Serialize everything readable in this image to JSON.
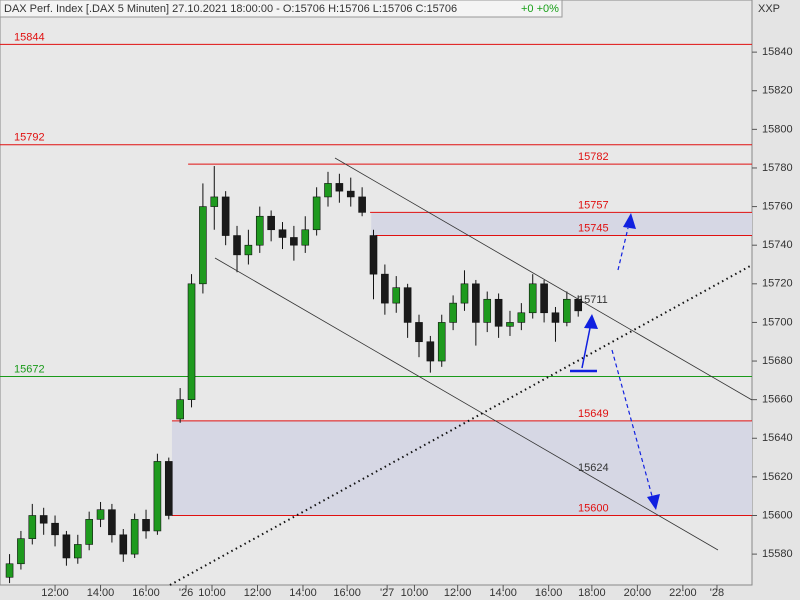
{
  "chart_data": {
    "type": "candlestick",
    "title": "DAX Perf. Index [.DAX  5 Minuten] 27.10.2021 18:00:00 - O:15706 H:15706 L:15706 C:15706",
    "change": "+0 +0%",
    "y_axis_label": "XXP",
    "up_color": "#1e9a1e",
    "down_color": "#1a1a1a",
    "ylim": [
      15564,
      15867
    ],
    "yticks": [
      15580,
      15600,
      15620,
      15640,
      15660,
      15680,
      15700,
      15720,
      15740,
      15760,
      15780,
      15800,
      15820,
      15840
    ],
    "xlim": [
      -2.42,
      30.64
    ],
    "xticks": [
      {
        "value": 0,
        "label": "12:00"
      },
      {
        "value": 2,
        "label": "14:00"
      },
      {
        "value": 4,
        "label": "16:00"
      },
      {
        "value": 5.76,
        "label": "'26"
      },
      {
        "value": 6.9,
        "label": "10:00"
      },
      {
        "value": 8.9,
        "label": "12:00"
      },
      {
        "value": 10.9,
        "label": "14:00"
      },
      {
        "value": 12.84,
        "label": "16:00"
      },
      {
        "value": 14.6,
        "label": "'27"
      },
      {
        "value": 15.8,
        "label": "10:00"
      },
      {
        "value": 17.7,
        "label": "12:00"
      },
      {
        "value": 19.7,
        "label": "14:00"
      },
      {
        "value": 21.7,
        "label": "16:00"
      },
      {
        "value": 23.6,
        "label": "18:00"
      },
      {
        "value": 25.6,
        "label": "20:00"
      },
      {
        "value": 27.6,
        "label": "22:00"
      },
      {
        "value": 29.1,
        "label": "'28"
      }
    ],
    "x": [
      -2.0,
      -1.5,
      -1.0,
      -0.5,
      0,
      0.5,
      1.0,
      1.5,
      2.0,
      2.5,
      3.0,
      3.5,
      4.0,
      4.5,
      5.0,
      5.5,
      6.0,
      6.5,
      7.0,
      7.5,
      8.0,
      8.5,
      9.0,
      9.5,
      10.0,
      10.5,
      11.0,
      11.5,
      12.0,
      12.5,
      13.0,
      13.5,
      14.0,
      14.5,
      15.0,
      15.5,
      16.0,
      16.5,
      17.0,
      17.5,
      18.0,
      18.5,
      19.0,
      19.5,
      20.0,
      20.5,
      21.0,
      21.5,
      22.0,
      22.5,
      23.0
    ],
    "open": [
      15568,
      15575,
      15588,
      15600,
      15596,
      15590,
      15578,
      15585,
      15598,
      15603,
      15590,
      15580,
      15598,
      15592,
      15628,
      15650,
      15660,
      15720,
      15760,
      15765,
      15745,
      15735,
      15740,
      15755,
      15748,
      15744,
      15740,
      15748,
      15765,
      15772,
      15768,
      15765,
      15745,
      15725,
      15710,
      15718,
      15700,
      15690,
      15680,
      15700,
      15710,
      15720,
      15700,
      15712,
      15698,
      15700,
      15705,
      15720,
      15705,
      15700,
      15712
    ],
    "high": [
      15580,
      15592,
      15606,
      15604,
      15600,
      15592,
      15590,
      15602,
      15607,
      15606,
      15593,
      15601,
      15603,
      15632,
      15630,
      15666,
      15725,
      15772,
      15781,
      15768,
      15750,
      15748,
      15760,
      15758,
      15752,
      15750,
      15755,
      15770,
      15778,
      15777,
      15775,
      15770,
      15748,
      15730,
      15724,
      15720,
      15704,
      15693,
      15704,
      15714,
      15727,
      15722,
      15716,
      15715,
      15706,
      15710,
      15725,
      15722,
      15708,
      15716,
      15714
    ],
    "low": [
      15565,
      15572,
      15585,
      15590,
      15584,
      15574,
      15575,
      15582,
      15594,
      15586,
      15576,
      15578,
      15588,
      15590,
      15598,
      15648,
      15656,
      15715,
      15748,
      15740,
      15726,
      15730,
      15736,
      15742,
      15738,
      15732,
      15736,
      15745,
      15760,
      15762,
      15760,
      15755,
      15712,
      15704,
      15705,
      15692,
      15682,
      15674,
      15677,
      15696,
      15706,
      15688,
      15695,
      15692,
      15693,
      15696,
      15702,
      15700,
      15690,
      15698,
      15703
    ],
    "close": [
      15575,
      15588,
      15600,
      15596,
      15590,
      15578,
      15585,
      15598,
      15603,
      15590,
      15580,
      15598,
      15592,
      15628,
      15600,
      15660,
      15720,
      15760,
      15765,
      15745,
      15735,
      15740,
      15755,
      15748,
      15744,
      15740,
      15748,
      15765,
      15772,
      15768,
      15765,
      15757,
      15725,
      15710,
      15718,
      15700,
      15690,
      15680,
      15700,
      15710,
      15720,
      15700,
      15712,
      15698,
      15700,
      15705,
      15720,
      15705,
      15700,
      15712,
      15706
    ],
    "zones": [
      {
        "from": 15745,
        "to": 15757,
        "start": 13.9
      },
      {
        "from": 15600,
        "to": 15649,
        "start": 5.14
      }
    ],
    "zone_color": "#d6d7e4",
    "levels": [
      {
        "value": 15844,
        "color": "#e01010"
      },
      {
        "value": 15792,
        "color": "#e01010"
      },
      {
        "value": 15782,
        "color": "#e01010",
        "start": 5.85
      },
      {
        "value": 15757,
        "color": "#e01010",
        "start": 13.85
      },
      {
        "value": 15745,
        "color": "#e01010",
        "start": 14.1
      },
      {
        "value": 15672,
        "color": "#1a9a1a"
      },
      {
        "value": 15649,
        "color": "#e01010",
        "start": 5.14
      },
      {
        "value": 15600,
        "color": "#e01010",
        "start": 5.14
      }
    ],
    "text_levels": [
      15711,
      15624
    ]
  }
}
